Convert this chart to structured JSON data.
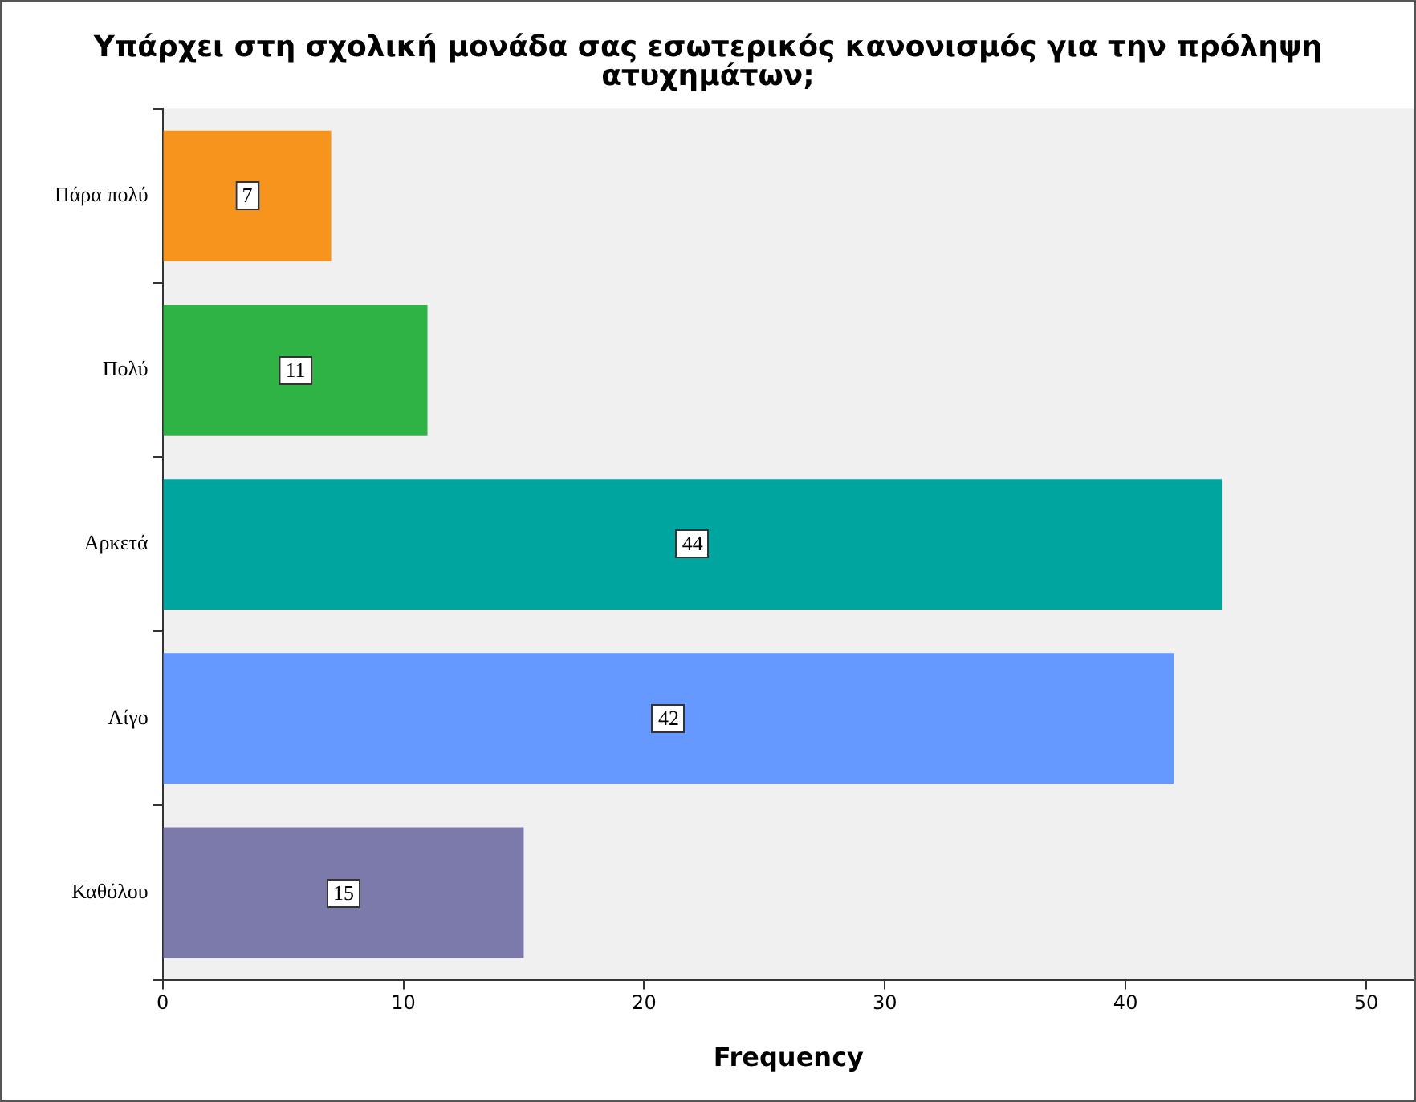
{
  "chart_data": {
    "type": "bar",
    "orientation": "horizontal",
    "title": "Υπάρχει στη σχολική μονάδα σας εσωτερικός κανονισμός για την πρόληψη ατυχημάτων;",
    "xlabel": "Frequency",
    "categories": [
      "Πάρα πολύ",
      "Πολύ",
      "Αρκετά",
      "Λίγο",
      "Καθόλου"
    ],
    "values": [
      7,
      11,
      44,
      42,
      15
    ],
    "colors": [
      "#f7941d",
      "#2fb344",
      "#00a5a0",
      "#6699ff",
      "#7b7aab"
    ],
    "xlim": [
      0,
      52
    ],
    "xticks": [
      0,
      10,
      20,
      30,
      40,
      50
    ],
    "grid": false,
    "legend": false,
    "data_labels": true
  }
}
